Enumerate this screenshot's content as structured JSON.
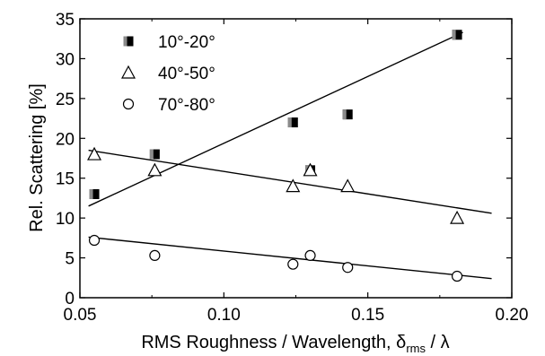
{
  "chart_data": {
    "type": "scatter",
    "xlabel_main": "RMS Roughness / Wavelength, ",
    "xlabel_delta": "δ",
    "xlabel_sub": "rms",
    "xlabel_tail": " / λ",
    "ylabel": "Rel. Scattering [%]",
    "xlim": [
      0.05,
      0.2
    ],
    "ylim": [
      0,
      35
    ],
    "xticks": [
      "0.05",
      "0.10",
      "0.15",
      "0.20"
    ],
    "xtick_values": [
      0.05,
      0.1,
      0.15,
      0.2
    ],
    "yticks": [
      "0",
      "5",
      "10",
      "15",
      "20",
      "25",
      "30",
      "35"
    ],
    "ytick_values": [
      0,
      5,
      10,
      15,
      20,
      25,
      30,
      35
    ],
    "grid": false,
    "legend_position": "top-left",
    "series": [
      {
        "name": "10°-20°",
        "marker": "filled-square",
        "x": [
          0.055,
          0.076,
          0.124,
          0.13,
          0.143,
          0.181
        ],
        "y": [
          13.0,
          18.0,
          22.0,
          16.0,
          23.0,
          33.0
        ],
        "fit": {
          "x": [
            0.053,
            0.183
          ],
          "y": [
            11.5,
            33.3
          ]
        }
      },
      {
        "name": "40°-50°",
        "marker": "open-triangle",
        "x": [
          0.055,
          0.076,
          0.124,
          0.13,
          0.143,
          0.181
        ],
        "y": [
          18.0,
          16.0,
          14.0,
          16.0,
          14.0,
          10.0
        ],
        "fit": {
          "x": [
            0.053,
            0.193
          ],
          "y": [
            18.5,
            10.6
          ]
        }
      },
      {
        "name": "70°-80°",
        "marker": "open-circle",
        "x": [
          0.055,
          0.076,
          0.124,
          0.13,
          0.143,
          0.181
        ],
        "y": [
          7.2,
          5.3,
          4.2,
          5.3,
          3.8,
          2.7
        ],
        "fit": {
          "x": [
            0.053,
            0.193
          ],
          "y": [
            7.6,
            2.4
          ]
        }
      }
    ]
  }
}
